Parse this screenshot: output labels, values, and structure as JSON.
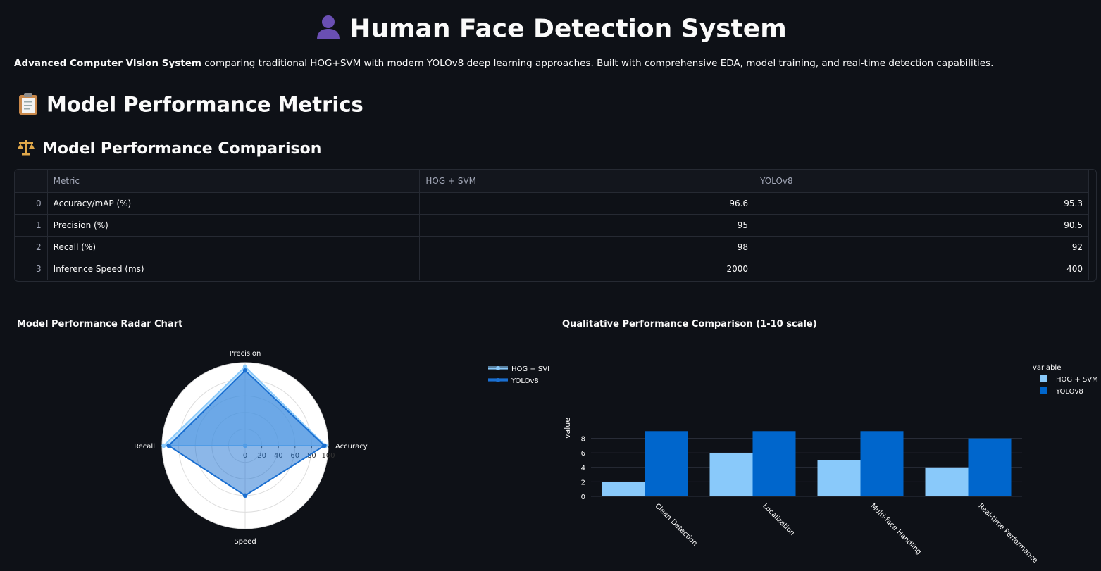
{
  "header": {
    "title_icon": "person-silhouette-icon",
    "title": "Human Face Detection System",
    "intro_bold": "Advanced Computer Vision System",
    "intro_rest": " comparing traditional HOG+SVM with modern YOLOv8 deep learning approaches. Built with comprehensive EDA, model training, and real-time detection capabilities."
  },
  "section": {
    "icon": "clipboard-icon",
    "title": "Model Performance Metrics",
    "sub_icon": "balance-scale-icon",
    "subtitle": "Model Performance Comparison"
  },
  "table": {
    "columns": [
      "",
      "Metric",
      "HOG + SVM",
      "YOLOv8"
    ],
    "rows": [
      {
        "index": "0",
        "metric": "Accuracy/mAP (%)",
        "hog": "96.6",
        "yolo": "95.3"
      },
      {
        "index": "1",
        "metric": "Precision (%)",
        "hog": "95",
        "yolo": "90.5"
      },
      {
        "index": "2",
        "metric": "Recall (%)",
        "hog": "98",
        "yolo": "92"
      },
      {
        "index": "3",
        "metric": "Inference Speed (ms)",
        "hog": "2000",
        "yolo": "400"
      }
    ]
  },
  "chart_data": [
    {
      "type": "radar",
      "title": "Model Performance Radar Chart",
      "axes": [
        "Accuracy",
        "Precision",
        "Recall",
        "Speed"
      ],
      "radial_ticks": [
        "0",
        "20",
        "40",
        "60",
        "80",
        "100"
      ],
      "radial_range": [
        0,
        100
      ],
      "legend_position": "right",
      "series": [
        {
          "name": "HOG + SVM",
          "values": [
            96.6,
            95,
            98,
            0
          ],
          "color": "#89c9fa"
        },
        {
          "name": "YOLOv8",
          "values": [
            95.3,
            90.5,
            92,
            60
          ],
          "color": "#1a6fd1"
        }
      ]
    },
    {
      "type": "bar",
      "title": "Qualitative Performance Comparison (1-10 scale)",
      "categories": [
        "Clean Detection",
        "Localization",
        "Multi-face Handling",
        "Real-time Performance"
      ],
      "ylabel": "value",
      "ylim": [
        0,
        10
      ],
      "yticks": [
        "0",
        "2",
        "4",
        "6",
        "8"
      ],
      "legend_title": "variable",
      "legend_position": "right",
      "series": [
        {
          "name": "HOG + SVM",
          "values": [
            2,
            6,
            5,
            4
          ],
          "color": "#89c9fa"
        },
        {
          "name": "YOLOv8",
          "values": [
            9,
            9,
            9,
            8
          ],
          "color": "#0066cc"
        }
      ]
    }
  ]
}
